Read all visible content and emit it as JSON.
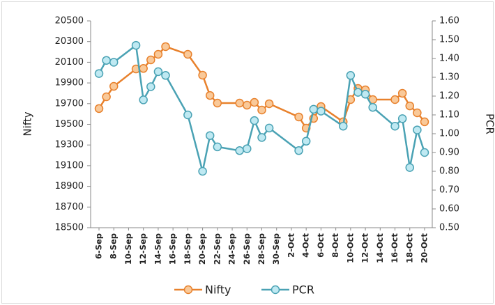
{
  "chart_data": {
    "type": "line",
    "y_label": "Nifty",
    "y2_label": "PCR",
    "categories": [
      "6-Sep",
      null,
      "8-Sep",
      null,
      "10-Sep",
      null,
      "12-Sep",
      null,
      "14-Sep",
      null,
      "16-Sep",
      null,
      "18-Sep",
      null,
      "20-Sep",
      null,
      "22-Sep",
      null,
      "24-Sep",
      null,
      "26-Sep",
      null,
      "28-Sep",
      null,
      "30-Sep",
      null,
      "2-Oct",
      null,
      "4-Oct",
      null,
      "6-Oct",
      null,
      "8-Oct",
      null,
      "10-Oct",
      null,
      "12-Oct",
      null,
      "14-Oct",
      null,
      "16-Oct",
      null,
      "18-Oct",
      null,
      "20-Oct"
    ],
    "series": [
      {
        "name": "Nifty",
        "color": "#e8812c",
        "marker_fill": "#f9c999",
        "values": [
          19652,
          19766,
          19867,
          null,
          null,
          20035,
          20040,
          20123,
          20177,
          20251,
          null,
          null,
          20177,
          null,
          19975,
          19779,
          19705,
          null,
          null,
          19705,
          19685,
          19712,
          19638,
          19699,
          null,
          null,
          null,
          19571,
          19463,
          19557,
          19672,
          null,
          null,
          19524,
          19739,
          19847,
          19833,
          19739,
          null,
          null,
          19739,
          19800,
          19678,
          19611,
          19524
        ]
      },
      {
        "name": "PCR",
        "color": "#4aa2b4",
        "marker_fill": "#bfe9f2",
        "axis": "y2",
        "values": [
          1.32,
          1.39,
          1.38,
          null,
          null,
          1.47,
          1.18,
          1.25,
          1.33,
          1.31,
          null,
          null,
          1.1,
          null,
          0.8,
          0.99,
          0.93,
          null,
          null,
          0.91,
          0.92,
          1.07,
          0.98,
          1.03,
          null,
          null,
          null,
          0.91,
          0.96,
          1.13,
          1.12,
          null,
          null,
          1.04,
          1.31,
          1.22,
          1.21,
          1.14,
          null,
          null,
          1.04,
          1.08,
          0.82,
          1.02,
          0.9
        ]
      }
    ],
    "ylim": [
      18500,
      20500
    ],
    "yticks": [
      18500,
      18700,
      18900,
      19100,
      19300,
      19500,
      19700,
      19900,
      20100,
      20300,
      20500
    ],
    "y2lim": [
      0.5,
      1.6
    ],
    "y2ticks": [
      {
        "value": 0.5,
        "label": "0.50"
      },
      {
        "value": 0.6,
        "label": "0.60"
      },
      {
        "value": 0.7,
        "label": "0.70"
      },
      {
        "value": 0.8,
        "label": "0.80"
      },
      {
        "value": 0.9,
        "label": "0.90"
      },
      {
        "value": 1.0,
        "label": "1.00"
      },
      {
        "value": 1.1,
        "label": "1.10"
      },
      {
        "value": 1.2,
        "label": "1.20"
      },
      {
        "value": 1.3,
        "label": "1.30"
      },
      {
        "value": 1.4,
        "label": "1.40"
      },
      {
        "value": 1.5,
        "label": "1.50"
      },
      {
        "value": 1.6,
        "label": "1.60"
      }
    ],
    "grid": false,
    "legend": "bottom"
  }
}
